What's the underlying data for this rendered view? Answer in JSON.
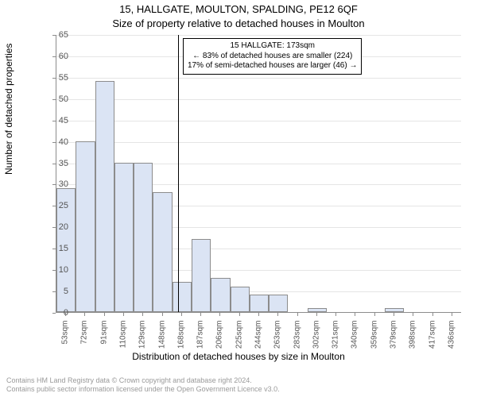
{
  "title": "15, HALLGATE, MOULTON, SPALDING, PE12 6QF",
  "subtitle": "Size of property relative to detached houses in Moulton",
  "ylabel": "Number of detached properties",
  "xlabel": "Distribution of detached houses by size in Moulton",
  "footer": {
    "line1": "Contains HM Land Registry data © Crown copyright and database right 2024.",
    "line2": "Contains public sector information licensed under the Open Government Licence v3.0."
  },
  "chart": {
    "type": "histogram",
    "background_color": "#ffffff",
    "grid_color": "#e5e5e5",
    "axis_color": "#8c8c8c",
    "bar_fill": "#dbe4f4",
    "bar_border": "#8c8c8c",
    "ylim": [
      0,
      65
    ],
    "yticks": [
      0,
      5,
      10,
      15,
      20,
      25,
      30,
      35,
      40,
      45,
      50,
      55,
      60,
      65
    ],
    "tick_fontsize": 11,
    "label_fontsize": 12,
    "title_fontsize": 13,
    "categories": [
      "53sqm",
      "72sqm",
      "91sqm",
      "110sqm",
      "129sqm",
      "148sqm",
      "168sqm",
      "187sqm",
      "206sqm",
      "225sqm",
      "244sqm",
      "263sqm",
      "283sqm",
      "302sqm",
      "321sqm",
      "340sqm",
      "359sqm",
      "379sqm",
      "398sqm",
      "417sqm",
      "436sqm"
    ],
    "values": [
      29,
      40,
      54,
      35,
      35,
      28,
      7,
      17,
      8,
      6,
      4,
      4,
      0,
      1,
      0,
      0,
      0,
      1,
      0,
      0,
      0
    ],
    "marker": {
      "category_index": 6,
      "color": "#000000"
    }
  },
  "callout": {
    "line1": "15 HALLGATE: 173sqm",
    "line2": "← 83% of detached houses are smaller (224)",
    "line3": "17% of semi-detached houses are larger (46) →"
  }
}
